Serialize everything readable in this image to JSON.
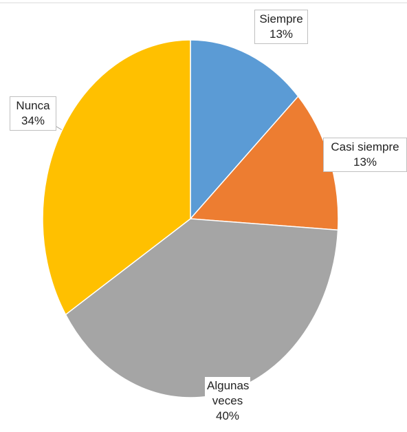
{
  "chart_data": {
    "type": "pie",
    "categories": [
      "Siempre",
      "Casi siempre",
      "Algunas veces",
      "Nunca"
    ],
    "values": [
      13,
      13,
      40,
      34
    ],
    "value_labels": [
      "13%",
      "13%",
      "40%",
      "34%"
    ],
    "colors": [
      "#5b9bd5",
      "#ed7d31",
      "#a5a5a5",
      "#ffc000"
    ]
  }
}
